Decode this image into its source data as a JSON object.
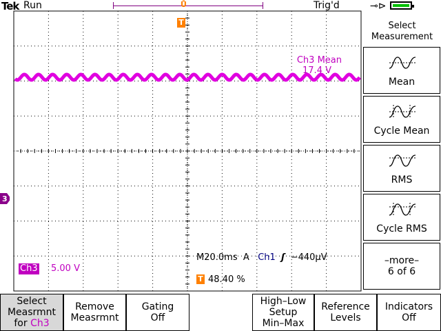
{
  "status": {
    "brand": "Tek",
    "run_state": "Run",
    "trigger_state": "Trig'd"
  },
  "icons": {
    "power": "plug-icon",
    "battery": "battery-icon",
    "trigger_point": "T",
    "channel_marker": "3"
  },
  "colors": {
    "channel3": "#c000c0",
    "trigger": "#ff8000",
    "battery": "#00c000",
    "grid": "#000000"
  },
  "measurement": {
    "label": "Ch3 Mean",
    "value": "17.4 V"
  },
  "channel": {
    "name": "Ch3",
    "scale": "5.00 V"
  },
  "timebase": {
    "horizontal": "M20.0ms",
    "mode": "A",
    "source": "Ch1",
    "level": "−440μV"
  },
  "trigger": {
    "position": "48.40 %"
  },
  "right_menu": {
    "title_line1": "Select",
    "title_line2": "Measurement",
    "items": [
      {
        "label": "Mean",
        "icon": "mean-waveform-icon"
      },
      {
        "label": "Cycle Mean",
        "icon": "cycle-mean-waveform-icon"
      },
      {
        "label": "RMS",
        "icon": "rms-waveform-icon"
      },
      {
        "label": "Cycle RMS",
        "icon": "cycle-rms-waveform-icon"
      }
    ],
    "more_label": "–more–",
    "more_page": "6 of 6"
  },
  "bottom_menu": {
    "select_line1": "Select",
    "select_line2": "Measrmnt",
    "select_line3_prefix": "for ",
    "select_line3_channel": "Ch3",
    "remove_line1": "Remove",
    "remove_line2": "Measrmnt",
    "gating_line1": "Gating",
    "gating_line2": "Off",
    "highlow_line1": "High–Low",
    "highlow_line2": "Setup",
    "highlow_line3": "Min–Max",
    "reference_line1": "Reference",
    "reference_line2": "Levels",
    "indicators_line1": "Indicators",
    "indicators_line2": "Off"
  }
}
